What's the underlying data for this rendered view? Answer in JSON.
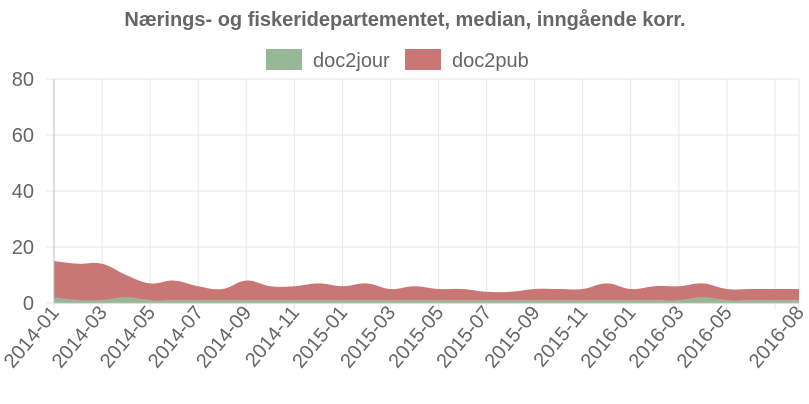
{
  "chart_data": {
    "type": "area",
    "title": "Nærings- og fiskeridepartementet, median, inngående korr.",
    "x": [
      "2014-01",
      "2014-02",
      "2014-03",
      "2014-04",
      "2014-05",
      "2014-06",
      "2014-07",
      "2014-08",
      "2014-09",
      "2014-10",
      "2014-11",
      "2014-12",
      "2015-01",
      "2015-02",
      "2015-03",
      "2015-04",
      "2015-05",
      "2015-06",
      "2015-07",
      "2015-08",
      "2015-09",
      "2015-10",
      "2015-11",
      "2015-12",
      "2016-01",
      "2016-02",
      "2016-03",
      "2016-04",
      "2016-05",
      "2016-06",
      "2016-07",
      "2016-08"
    ],
    "xticks": [
      "2014-01",
      "2014-03",
      "2014-05",
      "2014-07",
      "2014-09",
      "2014-11",
      "2015-01",
      "2015-03",
      "2015-05",
      "2015-07",
      "2015-09",
      "2015-11",
      "2016-01",
      "2016-03",
      "2016-05",
      "2016-08"
    ],
    "series": [
      {
        "name": "doc2jour",
        "color": "#97b897",
        "values": [
          2,
          1,
          1,
          2,
          1,
          1,
          1,
          1,
          1,
          1,
          1,
          1,
          1,
          1,
          1,
          1,
          1,
          1,
          1,
          1,
          1,
          1,
          1,
          1,
          1,
          1,
          1,
          2,
          1,
          1,
          1,
          1
        ]
      },
      {
        "name": "doc2pub",
        "color": "#c97775",
        "values": [
          13,
          13,
          13,
          8,
          6,
          7,
          5,
          4,
          7,
          5,
          5,
          6,
          5,
          6,
          4,
          5,
          4,
          4,
          3,
          3,
          4,
          4,
          4,
          6,
          4,
          5,
          5,
          5,
          4,
          4,
          4,
          4
        ]
      }
    ],
    "stacked": true,
    "ylim": [
      0,
      80
    ],
    "yticks": [
      0,
      20,
      40,
      60,
      80
    ],
    "grid": true,
    "legend": "top-center"
  }
}
